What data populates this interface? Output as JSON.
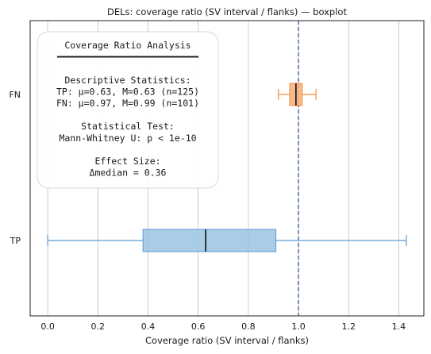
{
  "chart_data": {
    "type": "boxplot",
    "title": "DELs: coverage ratio (SV interval / flanks) — boxplot",
    "xlabel": "Coverage ratio (SV interval / flanks)",
    "ylabel": "",
    "xlim": [
      -0.07,
      1.5
    ],
    "xticks": [
      "0.0",
      "0.2",
      "0.4",
      "0.6",
      "0.8",
      "1.0",
      "1.2",
      "1.4"
    ],
    "xtick_values": [
      0.0,
      0.2,
      0.4,
      0.6,
      0.8,
      1.0,
      1.2,
      1.4
    ],
    "orientation": "horizontal",
    "grid": "vertical",
    "reference_line": {
      "x": 1.0,
      "style": "dashed",
      "color": "#4c6fb8"
    },
    "categories": [
      "TP",
      "FN"
    ],
    "boxes": [
      {
        "name": "TP",
        "whisker_low": 0.0,
        "q1": 0.38,
        "median": 0.63,
        "q3": 0.91,
        "whisker_high": 1.43,
        "color": "#9ac4e2",
        "edge": "#5b9bd5"
      },
      {
        "name": "FN",
        "whisker_low": 0.92,
        "q1": 0.965,
        "median": 0.99,
        "q3": 1.015,
        "whisker_high": 1.07,
        "color": "#f5b07a",
        "edge": "#f28c3a"
      }
    ]
  },
  "annotation": {
    "lines": [
      "Coverage Ratio Analysis",
      "━━━━━━━━━━━━━━━━━━━━",
      "",
      "Descriptive Statistics:",
      "TP: μ=0.63, M=0.63 (n=125)",
      "FN: μ=0.97, M=0.99 (n=101)",
      "",
      "Statistical Test:",
      "Mann-Whitney U: p < 1e-10",
      "",
      "Effect Size:",
      "Δmedian = 0.36"
    ]
  }
}
